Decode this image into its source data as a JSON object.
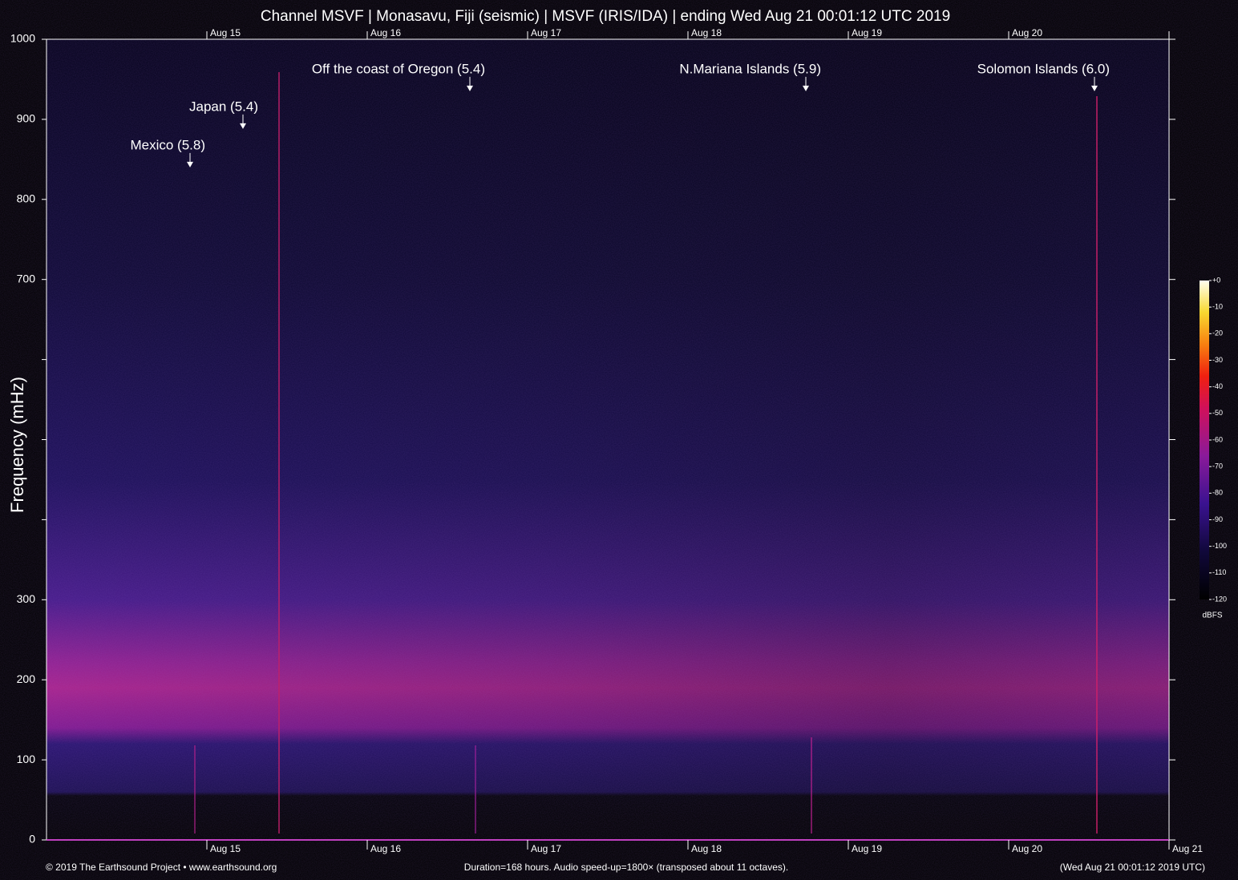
{
  "chart_data": {
    "type": "spectrogram",
    "title": "Channel MSVF | Monasavu, Fiji (seismic) | MSVF (IRIS/IDA) | ending Wed Aug 21 00:01:12 UTC 2019",
    "ylabel": "Frequency (mHz)",
    "xlim": [
      14,
      21
    ],
    "xticks": [
      {
        "value": 15,
        "label": "Aug 15"
      },
      {
        "value": 16,
        "label": "Aug 16"
      },
      {
        "value": 17,
        "label": "Aug 17"
      },
      {
        "value": 18,
        "label": "Aug 18"
      },
      {
        "value": 19,
        "label": "Aug 19"
      },
      {
        "value": 20,
        "label": "Aug 20"
      },
      {
        "value": 21,
        "label": "Aug 21"
      }
    ],
    "ylim": [
      0,
      1000
    ],
    "yticks": [
      0,
      100,
      200,
      300,
      700,
      800,
      900,
      1000
    ],
    "y_unlabeled_ticks": [
      400,
      500,
      600
    ],
    "annotations": [
      {
        "text": "Mexico (5.8)",
        "x": 14.895,
        "y": 840
      },
      {
        "text": "Japan (5.4)",
        "x": 15.225,
        "y": 888
      },
      {
        "text": "Off the coast of Oregon (5.4)",
        "x": 16.64,
        "y": 935
      },
      {
        "text": "N.Mariana Islands (5.9)",
        "x": 18.735,
        "y": 935
      },
      {
        "text": "Solomon Islands (6.0)",
        "x": 20.535,
        "y": 935
      }
    ],
    "colorbar": {
      "label": "dBFS",
      "lim": [
        -120,
        0
      ],
      "ticks": [
        {
          "value": 0,
          "label": "+0"
        },
        -10,
        -20,
        -30,
        -40,
        -50,
        -60,
        -70,
        -80,
        -90,
        -100,
        -110,
        -120
      ]
    },
    "footer_left": "© 2019 The Earthsound Project • www.earthsound.org",
    "footer_center": "Duration=168 hours. Audio speed-up=1800× (transposed about 11 octaves).",
    "footer_right": "(Wed Aug 21 00:01:12 2019 UTC)"
  }
}
